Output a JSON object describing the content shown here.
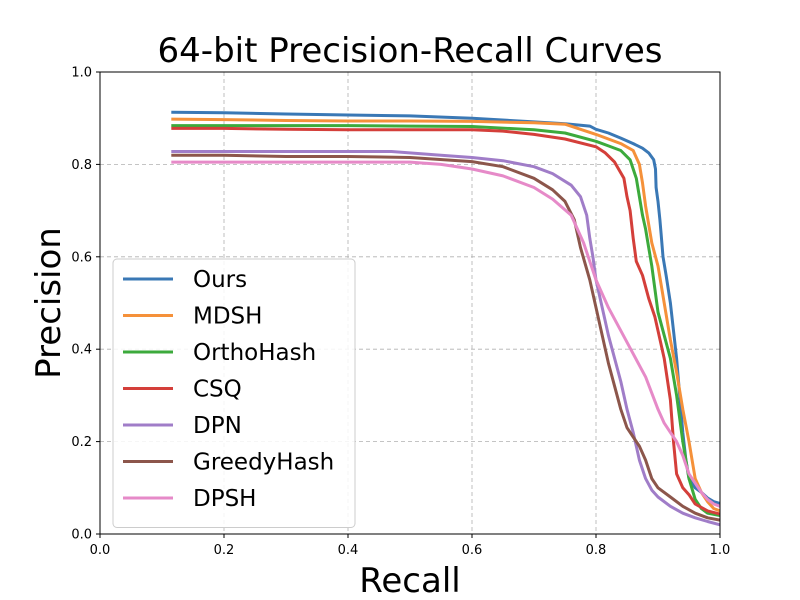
{
  "chart_data": {
    "type": "line",
    "title": "64-bit Precision-Recall Curves",
    "xlabel": "Recall",
    "ylabel": "Precision",
    "xlim": [
      0,
      1
    ],
    "ylim": [
      0,
      1
    ],
    "xticks": [
      "0.0",
      "0.2",
      "0.4",
      "0.6",
      "0.8",
      "1.0"
    ],
    "yticks": [
      "0.0",
      "0.2",
      "0.4",
      "0.6",
      "0.8",
      "1.0"
    ],
    "grid": true,
    "legend_position": "lower-left",
    "series": [
      {
        "name": "Ours",
        "color": "#3a78b5",
        "points": [
          [
            0.115,
            0.913
          ],
          [
            0.2,
            0.912
          ],
          [
            0.3,
            0.909
          ],
          [
            0.4,
            0.907
          ],
          [
            0.5,
            0.905
          ],
          [
            0.6,
            0.9
          ],
          [
            0.7,
            0.892
          ],
          [
            0.75,
            0.888
          ],
          [
            0.79,
            0.883
          ],
          [
            0.8,
            0.876
          ],
          [
            0.82,
            0.868
          ],
          [
            0.84,
            0.857
          ],
          [
            0.86,
            0.845
          ],
          [
            0.875,
            0.835
          ],
          [
            0.885,
            0.825
          ],
          [
            0.893,
            0.81
          ],
          [
            0.896,
            0.79
          ],
          [
            0.897,
            0.75
          ],
          [
            0.9,
            0.72
          ],
          [
            0.903,
            0.68
          ],
          [
            0.905,
            0.65
          ],
          [
            0.908,
            0.6
          ],
          [
            0.913,
            0.56
          ],
          [
            0.92,
            0.5
          ],
          [
            0.925,
            0.44
          ],
          [
            0.93,
            0.38
          ],
          [
            0.935,
            0.3
          ],
          [
            0.94,
            0.22
          ],
          [
            0.945,
            0.16
          ],
          [
            0.95,
            0.12
          ],
          [
            0.96,
            0.1
          ],
          [
            0.97,
            0.09
          ],
          [
            0.98,
            0.078
          ],
          [
            0.99,
            0.07
          ],
          [
            1.0,
            0.066
          ]
        ]
      },
      {
        "name": "MDSH",
        "color": "#f5913a",
        "points": [
          [
            0.115,
            0.898
          ],
          [
            0.2,
            0.897
          ],
          [
            0.3,
            0.895
          ],
          [
            0.4,
            0.894
          ],
          [
            0.5,
            0.894
          ],
          [
            0.6,
            0.893
          ],
          [
            0.7,
            0.89
          ],
          [
            0.75,
            0.887
          ],
          [
            0.8,
            0.865
          ],
          [
            0.82,
            0.855
          ],
          [
            0.84,
            0.845
          ],
          [
            0.86,
            0.83
          ],
          [
            0.87,
            0.8
          ],
          [
            0.875,
            0.76
          ],
          [
            0.88,
            0.71
          ],
          [
            0.885,
            0.67
          ],
          [
            0.89,
            0.63
          ],
          [
            0.9,
            0.58
          ],
          [
            0.905,
            0.54
          ],
          [
            0.91,
            0.5
          ],
          [
            0.915,
            0.46
          ],
          [
            0.92,
            0.42
          ],
          [
            0.93,
            0.35
          ],
          [
            0.94,
            0.27
          ],
          [
            0.95,
            0.2
          ],
          [
            0.96,
            0.12
          ],
          [
            0.97,
            0.09
          ],
          [
            0.98,
            0.07
          ],
          [
            0.99,
            0.055
          ],
          [
            1.0,
            0.05
          ]
        ]
      },
      {
        "name": "OrthoHash",
        "color": "#3caa3c",
        "points": [
          [
            0.115,
            0.884
          ],
          [
            0.2,
            0.884
          ],
          [
            0.3,
            0.884
          ],
          [
            0.4,
            0.884
          ],
          [
            0.5,
            0.883
          ],
          [
            0.6,
            0.882
          ],
          [
            0.7,
            0.875
          ],
          [
            0.75,
            0.868
          ],
          [
            0.8,
            0.85
          ],
          [
            0.82,
            0.84
          ],
          [
            0.84,
            0.83
          ],
          [
            0.855,
            0.81
          ],
          [
            0.865,
            0.77
          ],
          [
            0.87,
            0.73
          ],
          [
            0.875,
            0.69
          ],
          [
            0.88,
            0.66
          ],
          [
            0.885,
            0.62
          ],
          [
            0.89,
            0.58
          ],
          [
            0.895,
            0.53
          ],
          [
            0.9,
            0.48
          ],
          [
            0.91,
            0.43
          ],
          [
            0.92,
            0.38
          ],
          [
            0.93,
            0.3
          ],
          [
            0.94,
            0.2
          ],
          [
            0.95,
            0.12
          ],
          [
            0.96,
            0.075
          ],
          [
            0.97,
            0.055
          ],
          [
            0.98,
            0.045
          ],
          [
            1.0,
            0.04
          ]
        ]
      },
      {
        "name": "CSQ",
        "color": "#d43f3a",
        "points": [
          [
            0.115,
            0.878
          ],
          [
            0.2,
            0.878
          ],
          [
            0.3,
            0.876
          ],
          [
            0.4,
            0.875
          ],
          [
            0.5,
            0.875
          ],
          [
            0.6,
            0.875
          ],
          [
            0.65,
            0.872
          ],
          [
            0.7,
            0.865
          ],
          [
            0.75,
            0.855
          ],
          [
            0.8,
            0.838
          ],
          [
            0.815,
            0.825
          ],
          [
            0.83,
            0.805
          ],
          [
            0.845,
            0.77
          ],
          [
            0.85,
            0.73
          ],
          [
            0.855,
            0.7
          ],
          [
            0.86,
            0.64
          ],
          [
            0.865,
            0.59
          ],
          [
            0.875,
            0.56
          ],
          [
            0.885,
            0.51
          ],
          [
            0.895,
            0.47
          ],
          [
            0.9,
            0.44
          ],
          [
            0.91,
            0.38
          ],
          [
            0.92,
            0.29
          ],
          [
            0.925,
            0.2
          ],
          [
            0.93,
            0.13
          ],
          [
            0.94,
            0.1
          ],
          [
            0.95,
            0.085
          ],
          [
            0.96,
            0.065
          ],
          [
            0.98,
            0.05
          ],
          [
            1.0,
            0.043
          ]
        ]
      },
      {
        "name": "DPN",
        "color": "#a07dc8",
        "points": [
          [
            0.115,
            0.828
          ],
          [
            0.2,
            0.828
          ],
          [
            0.3,
            0.828
          ],
          [
            0.4,
            0.828
          ],
          [
            0.47,
            0.828
          ],
          [
            0.55,
            0.82
          ],
          [
            0.6,
            0.815
          ],
          [
            0.65,
            0.808
          ],
          [
            0.7,
            0.795
          ],
          [
            0.73,
            0.78
          ],
          [
            0.76,
            0.755
          ],
          [
            0.775,
            0.73
          ],
          [
            0.785,
            0.69
          ],
          [
            0.79,
            0.64
          ],
          [
            0.795,
            0.6
          ],
          [
            0.8,
            0.55
          ],
          [
            0.81,
            0.49
          ],
          [
            0.82,
            0.43
          ],
          [
            0.83,
            0.38
          ],
          [
            0.84,
            0.33
          ],
          [
            0.85,
            0.27
          ],
          [
            0.86,
            0.22
          ],
          [
            0.87,
            0.16
          ],
          [
            0.88,
            0.12
          ],
          [
            0.89,
            0.095
          ],
          [
            0.9,
            0.08
          ],
          [
            0.92,
            0.06
          ],
          [
            0.94,
            0.045
          ],
          [
            0.96,
            0.035
          ],
          [
            0.98,
            0.027
          ],
          [
            1.0,
            0.02
          ]
        ]
      },
      {
        "name": "GreedyHash",
        "color": "#8c564b",
        "points": [
          [
            0.115,
            0.82
          ],
          [
            0.2,
            0.82
          ],
          [
            0.3,
            0.817
          ],
          [
            0.4,
            0.817
          ],
          [
            0.5,
            0.815
          ],
          [
            0.6,
            0.806
          ],
          [
            0.65,
            0.795
          ],
          [
            0.7,
            0.77
          ],
          [
            0.73,
            0.745
          ],
          [
            0.75,
            0.72
          ],
          [
            0.765,
            0.68
          ],
          [
            0.775,
            0.62
          ],
          [
            0.79,
            0.55
          ],
          [
            0.8,
            0.49
          ],
          [
            0.81,
            0.43
          ],
          [
            0.82,
            0.37
          ],
          [
            0.83,
            0.32
          ],
          [
            0.84,
            0.27
          ],
          [
            0.85,
            0.23
          ],
          [
            0.86,
            0.21
          ],
          [
            0.87,
            0.19
          ],
          [
            0.88,
            0.16
          ],
          [
            0.89,
            0.12
          ],
          [
            0.9,
            0.1
          ],
          [
            0.92,
            0.08
          ],
          [
            0.94,
            0.06
          ],
          [
            0.96,
            0.045
          ],
          [
            0.98,
            0.035
          ],
          [
            1.0,
            0.03
          ]
        ]
      },
      {
        "name": "DPSH",
        "color": "#e68ac8",
        "points": [
          [
            0.115,
            0.805
          ],
          [
            0.2,
            0.805
          ],
          [
            0.3,
            0.805
          ],
          [
            0.4,
            0.805
          ],
          [
            0.5,
            0.805
          ],
          [
            0.55,
            0.8
          ],
          [
            0.6,
            0.79
          ],
          [
            0.65,
            0.775
          ],
          [
            0.7,
            0.75
          ],
          [
            0.73,
            0.725
          ],
          [
            0.76,
            0.69
          ],
          [
            0.78,
            0.63
          ],
          [
            0.8,
            0.55
          ],
          [
            0.82,
            0.49
          ],
          [
            0.84,
            0.44
          ],
          [
            0.86,
            0.39
          ],
          [
            0.88,
            0.34
          ],
          [
            0.9,
            0.27
          ],
          [
            0.91,
            0.24
          ],
          [
            0.92,
            0.22
          ],
          [
            0.93,
            0.2
          ],
          [
            0.94,
            0.17
          ],
          [
            0.95,
            0.13
          ],
          [
            0.96,
            0.11
          ],
          [
            0.97,
            0.09
          ],
          [
            0.98,
            0.075
          ],
          [
            0.99,
            0.065
          ],
          [
            1.0,
            0.06
          ]
        ]
      }
    ]
  }
}
